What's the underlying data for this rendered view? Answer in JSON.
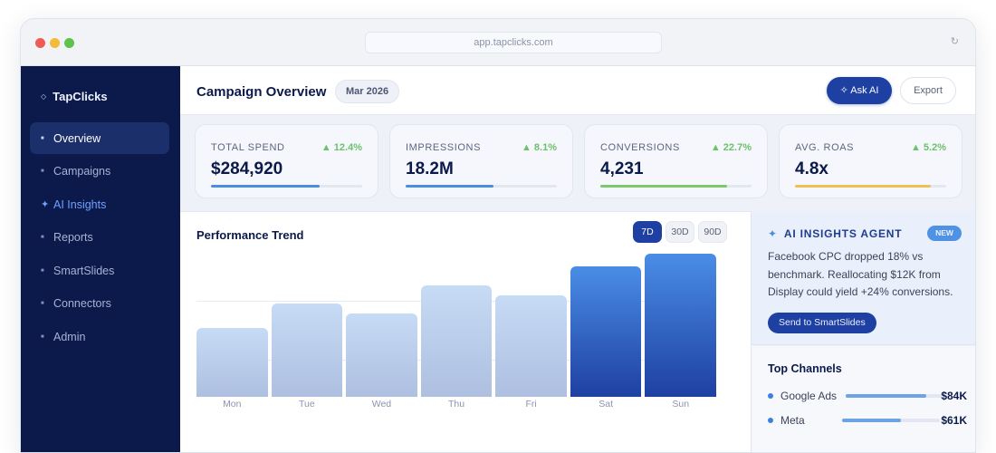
{
  "browser": {
    "url": "app.tapclicks.com",
    "reload_icon": "↻"
  },
  "sidebar": {
    "brand": "TapClicks",
    "brand_icon": "◇",
    "items": [
      {
        "label": "Overview",
        "icon": "■",
        "active": true
      },
      {
        "label": "Campaigns",
        "icon": "■"
      },
      {
        "label": "AI Insights",
        "icon": "✦",
        "accent": true
      },
      {
        "label": "Reports",
        "icon": "■"
      },
      {
        "label": "SmartSlides",
        "icon": "■"
      },
      {
        "label": "Connectors",
        "icon": "■"
      },
      {
        "label": "Admin",
        "icon": "■"
      }
    ]
  },
  "header": {
    "title": "Campaign Overview",
    "date": "Mar 2026",
    "ask_ai": "✧ Ask AI",
    "export": "Export"
  },
  "kpis": [
    {
      "label": "TOTAL SPEND",
      "value": "$284,920",
      "delta": "▲ 12.4%",
      "progress": 72,
      "color": "#4a8ee0"
    },
    {
      "label": "IMPRESSIONS",
      "value": "18.2M",
      "delta": "▲ 8.1%",
      "progress": 58,
      "color": "#4a8ee0"
    },
    {
      "label": "CONVERSIONS",
      "value": "4,231",
      "delta": "▲ 22.7%",
      "progress": 84,
      "color": "#7dc86a"
    },
    {
      "label": "AVG. ROAS",
      "value": "4.8x",
      "delta": "▲ 5.2%",
      "progress": 90,
      "color": "#f0c058"
    }
  ],
  "chart": {
    "title": "Performance Trend",
    "ranges": [
      {
        "label": "7D",
        "active": true
      },
      {
        "label": "30D"
      },
      {
        "label": "90D"
      }
    ]
  },
  "chart_data": {
    "type": "bar",
    "title": "Performance Trend",
    "categories": [
      "Mon",
      "Tue",
      "Wed",
      "Thu",
      "Fri",
      "Sat",
      "Sun"
    ],
    "values": [
      48,
      65,
      58,
      78,
      71,
      91,
      100
    ],
    "highlighted": [
      "Sat",
      "Sun"
    ],
    "xlabel": "",
    "ylabel": "",
    "ylim": [
      0,
      100
    ],
    "grid": true,
    "legend": null
  },
  "ai_agent": {
    "title": "AI INSIGHTS AGENT",
    "icon": "✦",
    "badge": "NEW",
    "message": "Facebook CPC dropped 18% vs benchmark. Reallocating $12K from Display could yield +24% conversions.",
    "action": "Send to SmartSlides"
  },
  "channels": {
    "title": "Top Channels",
    "items": [
      {
        "name": "Google Ads",
        "value": "$84K",
        "progress": 82
      },
      {
        "name": "Meta",
        "value": "$61K",
        "progress": 60
      }
    ]
  }
}
